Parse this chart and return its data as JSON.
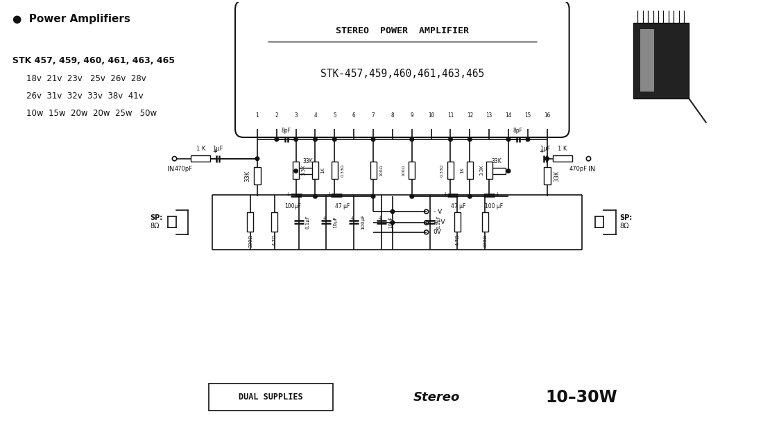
{
  "bg_color": "#ffffff",
  "line_color": "#111111",
  "title_box_text1": "STEREO  POWER  AMPLIFIER",
  "title_box_text2": "STK-457,459,460,461,463,465",
  "pin_labels": [
    "1",
    "2",
    "3",
    "4",
    "5",
    "6",
    "7",
    "8",
    "9",
    "10",
    "11",
    "12",
    "13",
    "14",
    "15",
    "16"
  ],
  "bullet_header": "●  Power Amplifiers",
  "stk_line1": "STK 457, 459, 460, 461, 463, 465",
  "stk_line2": "18v  21v  23v |25v  26v  28v",
  "stk_line3": "26v  31v  32v  33v  38v  41v",
  "stk_line4": "10w  15w  20w  20w|25w |50w",
  "bottom_text1": "DUAL SUPPLIES",
  "bottom_text2": "Stereo",
  "bottom_text3": "10–30W",
  "fig_width": 11.0,
  "fig_height": 6.2
}
